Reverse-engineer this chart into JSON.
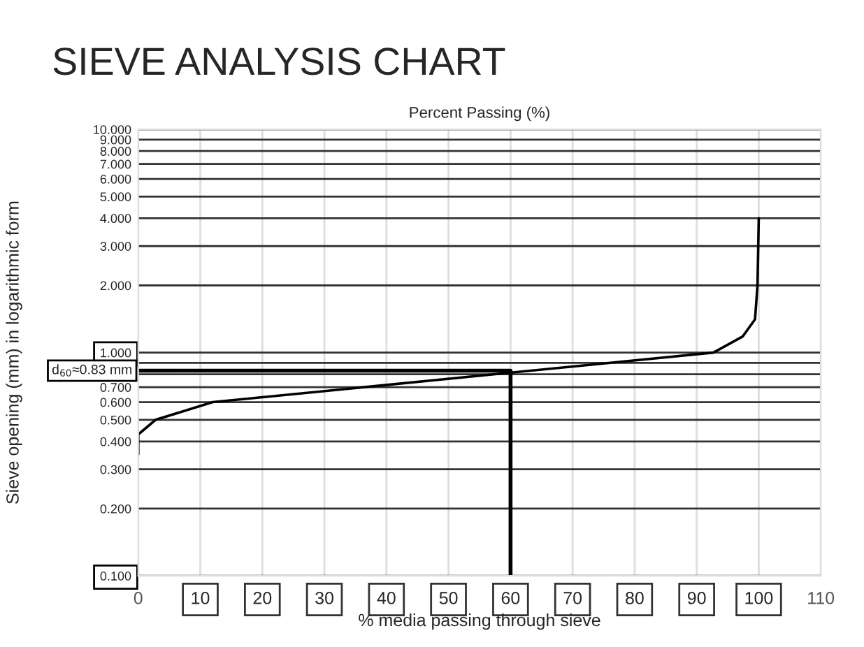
{
  "chart_data": {
    "type": "line",
    "title": "SIEVE ANALYSIS CHART",
    "subtitle": "Percent Passing (%)",
    "xlabel": "% media passing through sieve",
    "ylabel": "Sieve opening (mm) in logarithmic form",
    "log": "y",
    "xlim": [
      0,
      110
    ],
    "ylim": [
      0.1,
      10
    ],
    "xticks": [
      0,
      10,
      20,
      30,
      40,
      50,
      60,
      70,
      80,
      90,
      100,
      110
    ],
    "yticks": [
      {
        "value": 0.1,
        "label": "0.100"
      },
      {
        "value": 0.2,
        "label": "0.200"
      },
      {
        "value": 0.3,
        "label": "0.300"
      },
      {
        "value": 0.4,
        "label": "0.400"
      },
      {
        "value": 0.5,
        "label": "0.500"
      },
      {
        "value": 0.6,
        "label": "0.600"
      },
      {
        "value": 0.7,
        "label": "0.700"
      },
      {
        "value": 0.8,
        "label": null
      },
      {
        "value": 0.9,
        "label": null
      },
      {
        "value": 1,
        "label": "1.000"
      },
      {
        "value": 2,
        "label": "2.000"
      },
      {
        "value": 3,
        "label": "3.000"
      },
      {
        "value": 4,
        "label": "4.000"
      },
      {
        "value": 5,
        "label": "5.000"
      },
      {
        "value": 6,
        "label": "6.000"
      },
      {
        "value": 7,
        "label": "7.000"
      },
      {
        "value": 8,
        "label": "8.000"
      },
      {
        "value": 9,
        "label": "9.000"
      },
      {
        "value": 10,
        "label": "10.000"
      }
    ],
    "grid": true,
    "marker": "none",
    "line_style": "solid",
    "series": [
      {
        "color": "#000000",
        "x": [
          0,
          0,
          2.8,
          12,
          92.7,
          97.4,
          99.4,
          99.8,
          100
        ],
        "values": [
          0.35,
          0.43,
          0.5,
          0.6,
          1.0,
          1.18,
          1.41,
          2.0,
          4.0
        ]
      },
      {
        "color": "#000000",
        "x": [
          0,
          60,
          60
        ],
        "values": [
          0.83,
          0.83,
          0.1
        ]
      }
    ],
    "annotations": [
      {
        "text": "d$_{60}$≈0.83 mm",
        "x": 0,
        "y": 0.83
      }
    ]
  }
}
